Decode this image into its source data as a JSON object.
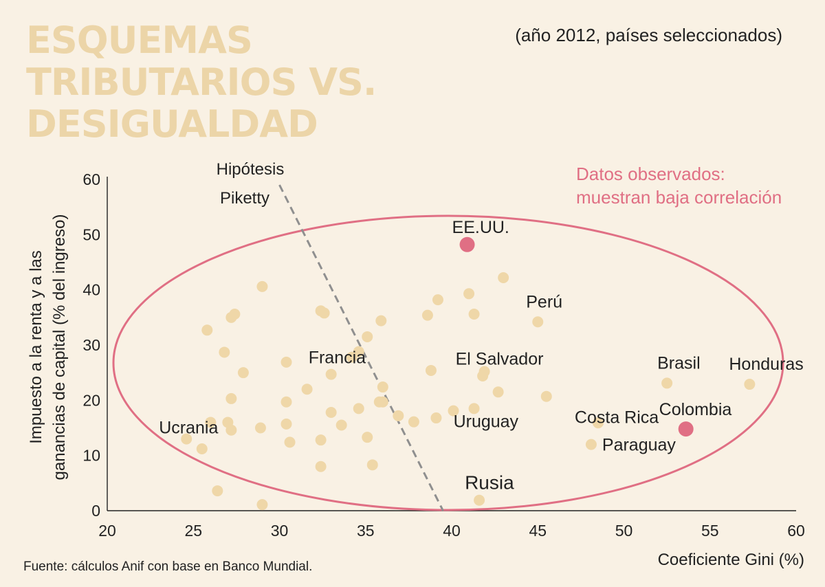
{
  "title_lines": [
    "ESQUEMAS",
    "TRIBUTARIOS VS.",
    "DESIGUALDAD"
  ],
  "subtitle": "(año 2012, países seleccionados)",
  "source": "Fuente: cálculos Anif con base en Banco Mundial.",
  "colors": {
    "background": "#f9f1e4",
    "title": "#ecd5a8",
    "point": "#efd7a8",
    "highlight": "#e06f84",
    "ellipse": "#e06f84",
    "hypothesis_line": "#8f8f8f",
    "text": "#222222"
  },
  "chart_data": {
    "type": "scatter",
    "xlabel": "Coeficiente Gini (%)",
    "ylabel_lines": [
      "Impuesto a la renta y a las",
      "ganancias de capital (% del ingreso)"
    ],
    "xlim": [
      20,
      60
    ],
    "ylim": [
      0,
      60
    ],
    "xticks": [
      20,
      25,
      30,
      35,
      40,
      45,
      50,
      55,
      60
    ],
    "yticks": [
      0,
      10,
      20,
      30,
      40,
      50,
      60
    ],
    "grid": false,
    "hypothesis": {
      "label_lines": [
        "Hipótesis",
        "Piketty"
      ],
      "from": [
        30,
        59
      ],
      "to": [
        39.5,
        0
      ]
    },
    "observed": {
      "label_lines": [
        "Datos observados:",
        "muestran baja correlación"
      ]
    },
    "highlighted": [
      {
        "label": "EE.UU.",
        "x": 40.9,
        "y": 48.2
      },
      {
        "label": "Colombia",
        "x": 53.6,
        "y": 14.8
      }
    ],
    "labeled": [
      {
        "label": "Perú",
        "x": 45.0,
        "y": 34.2
      },
      {
        "label": "El Salvador",
        "x": 41.9,
        "y": 25.2
      },
      {
        "label": "Brasil",
        "x": 52.5,
        "y": 23.1
      },
      {
        "label": "Honduras",
        "x": 57.3,
        "y": 22.9
      },
      {
        "label": "Costa Rica",
        "x": 48.5,
        "y": 15.9
      },
      {
        "label": "Paraguay",
        "x": 48.1,
        "y": 12.0
      },
      {
        "label": "Uruguay",
        "x": 41.3,
        "y": 18.5
      },
      {
        "label": "Francia",
        "x": 34.2,
        "y": 27.8
      },
      {
        "label": "Ucrania",
        "x": 24.6,
        "y": 13.0
      },
      {
        "label": "Rusia",
        "x": 41.6,
        "y": 1.9
      }
    ],
    "points": [
      {
        "x": 29.0,
        "y": 40.6
      },
      {
        "x": 25.8,
        "y": 32.7
      },
      {
        "x": 27.2,
        "y": 35.0
      },
      {
        "x": 27.4,
        "y": 35.6
      },
      {
        "x": 26.8,
        "y": 28.7
      },
      {
        "x": 27.9,
        "y": 25.0
      },
      {
        "x": 27.2,
        "y": 20.3
      },
      {
        "x": 26.0,
        "y": 16.0
      },
      {
        "x": 27.0,
        "y": 16.0
      },
      {
        "x": 27.2,
        "y": 14.6
      },
      {
        "x": 25.5,
        "y": 11.2
      },
      {
        "x": 28.9,
        "y": 15.0
      },
      {
        "x": 26.4,
        "y": 3.6
      },
      {
        "x": 29.0,
        "y": 1.1
      },
      {
        "x": 30.4,
        "y": 26.9
      },
      {
        "x": 30.4,
        "y": 19.7
      },
      {
        "x": 30.4,
        "y": 15.7
      },
      {
        "x": 30.6,
        "y": 12.4
      },
      {
        "x": 31.6,
        "y": 22.0
      },
      {
        "x": 32.4,
        "y": 36.2
      },
      {
        "x": 32.6,
        "y": 35.8
      },
      {
        "x": 33.0,
        "y": 24.7
      },
      {
        "x": 33.0,
        "y": 17.8
      },
      {
        "x": 32.4,
        "y": 12.8
      },
      {
        "x": 32.4,
        "y": 8.0
      },
      {
        "x": 33.6,
        "y": 15.5
      },
      {
        "x": 34.6,
        "y": 28.8
      },
      {
        "x": 35.1,
        "y": 31.5
      },
      {
        "x": 35.9,
        "y": 34.4
      },
      {
        "x": 36.0,
        "y": 22.4
      },
      {
        "x": 35.8,
        "y": 19.7
      },
      {
        "x": 36.0,
        "y": 19.7
      },
      {
        "x": 34.6,
        "y": 18.5
      },
      {
        "x": 35.1,
        "y": 13.3
      },
      {
        "x": 35.4,
        "y": 8.3
      },
      {
        "x": 36.9,
        "y": 17.2
      },
      {
        "x": 37.8,
        "y": 16.1
      },
      {
        "x": 38.6,
        "y": 35.4
      },
      {
        "x": 38.8,
        "y": 25.4
      },
      {
        "x": 39.2,
        "y": 38.2
      },
      {
        "x": 39.1,
        "y": 16.8
      },
      {
        "x": 40.1,
        "y": 18.1
      },
      {
        "x": 41.0,
        "y": 39.3
      },
      {
        "x": 41.3,
        "y": 35.6
      },
      {
        "x": 41.8,
        "y": 24.4
      },
      {
        "x": 42.7,
        "y": 21.5
      },
      {
        "x": 43.0,
        "y": 42.2
      },
      {
        "x": 45.5,
        "y": 20.7
      }
    ]
  }
}
